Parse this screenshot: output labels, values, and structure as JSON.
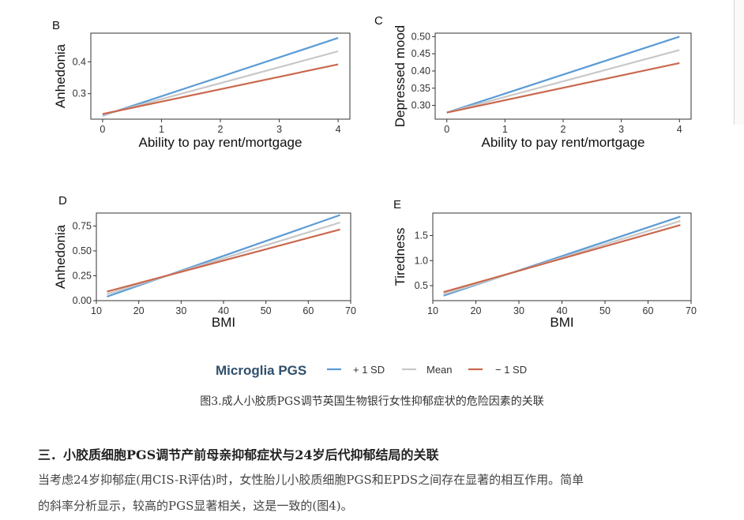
{
  "chart_data": [
    {
      "panel": "B",
      "type": "line",
      "xlabel": "Ability to pay rent/mortgage",
      "ylabel": "Anhedonia",
      "xlim": [
        -0.2,
        4.2
      ],
      "ylim": [
        0.22,
        0.49
      ],
      "xticks": [
        0,
        1,
        2,
        3,
        4
      ],
      "yticks": [
        0.3,
        0.4
      ],
      "x": [
        0,
        4
      ],
      "series": [
        {
          "name": "+ 1 SD",
          "values": [
            0.231,
            0.475
          ]
        },
        {
          "name": "Mean",
          "values": [
            0.233,
            0.433
          ]
        },
        {
          "name": "− 1 SD",
          "values": [
            0.236,
            0.392
          ]
        }
      ]
    },
    {
      "panel": "C",
      "type": "line",
      "xlabel": "Ability to pay rent/mortgage",
      "ylabel": "Depressed mood",
      "xlim": [
        -0.2,
        4.2
      ],
      "ylim": [
        0.26,
        0.51
      ],
      "xticks": [
        0,
        1,
        2,
        3,
        4
      ],
      "yticks": [
        0.3,
        0.35,
        0.4,
        0.45,
        0.5
      ],
      "x": [
        0,
        4
      ],
      "series": [
        {
          "name": "+ 1 SD",
          "values": [
            0.279,
            0.5
          ]
        },
        {
          "name": "Mean",
          "values": [
            0.279,
            0.461
          ]
        },
        {
          "name": "− 1 SD",
          "values": [
            0.279,
            0.423
          ]
        }
      ]
    },
    {
      "panel": "D",
      "type": "line",
      "xlabel": "BMI",
      "ylabel": "Anhedonia",
      "xlim": [
        10,
        70
      ],
      "ylim": [
        0,
        0.88
      ],
      "xticks": [
        10,
        20,
        30,
        40,
        50,
        60,
        70
      ],
      "yticks": [
        0.0,
        0.25,
        0.5,
        0.75
      ],
      "x": [
        12.5,
        67.5
      ],
      "series": [
        {
          "name": "+ 1 SD",
          "values": [
            0.04,
            0.86
          ]
        },
        {
          "name": "Mean",
          "values": [
            0.065,
            0.785
          ]
        },
        {
          "name": "− 1 SD",
          "values": [
            0.09,
            0.715
          ]
        }
      ]
    },
    {
      "panel": "E",
      "type": "line",
      "xlabel": "BMI",
      "ylabel": "Tiredness",
      "xlim": [
        10,
        70
      ],
      "ylim": [
        0.2,
        1.95
      ],
      "xticks": [
        10,
        20,
        30,
        40,
        50,
        60,
        70
      ],
      "yticks": [
        0.5,
        1.0,
        1.5
      ],
      "x": [
        12.5,
        67.5
      ],
      "series": [
        {
          "name": "+ 1 SD",
          "values": [
            0.3,
            1.88
          ]
        },
        {
          "name": "Mean",
          "values": [
            0.33,
            1.79
          ]
        },
        {
          "name": "− 1 SD",
          "values": [
            0.37,
            1.71
          ]
        }
      ]
    }
  ],
  "legend": {
    "title": "Microglia PGS",
    "items": [
      {
        "label": "+ 1 SD",
        "color": "#5b9bd5"
      },
      {
        "label": "Mean",
        "color": "#c8c8c8"
      },
      {
        "label": "− 1 SD",
        "color": "#c9694f"
      }
    ]
  },
  "text": {
    "caption": "图3.成人小胶质PGS调节英国生物银行女性抑郁症状的危险因素的关联",
    "section_heading": "三．小胶质细胞PGS调节产前母亲抑郁症状与24岁后代抑郁结局的关联",
    "para_line1": "当考虑24岁抑郁症(用CIS-R评估)时，女性胎儿小胶质细胞PGS和EPDS之间存在显著的相互作用。简单",
    "para_line2": "的斜率分析显示，较高的PGS显著相关，这是一致的(图4)。"
  }
}
